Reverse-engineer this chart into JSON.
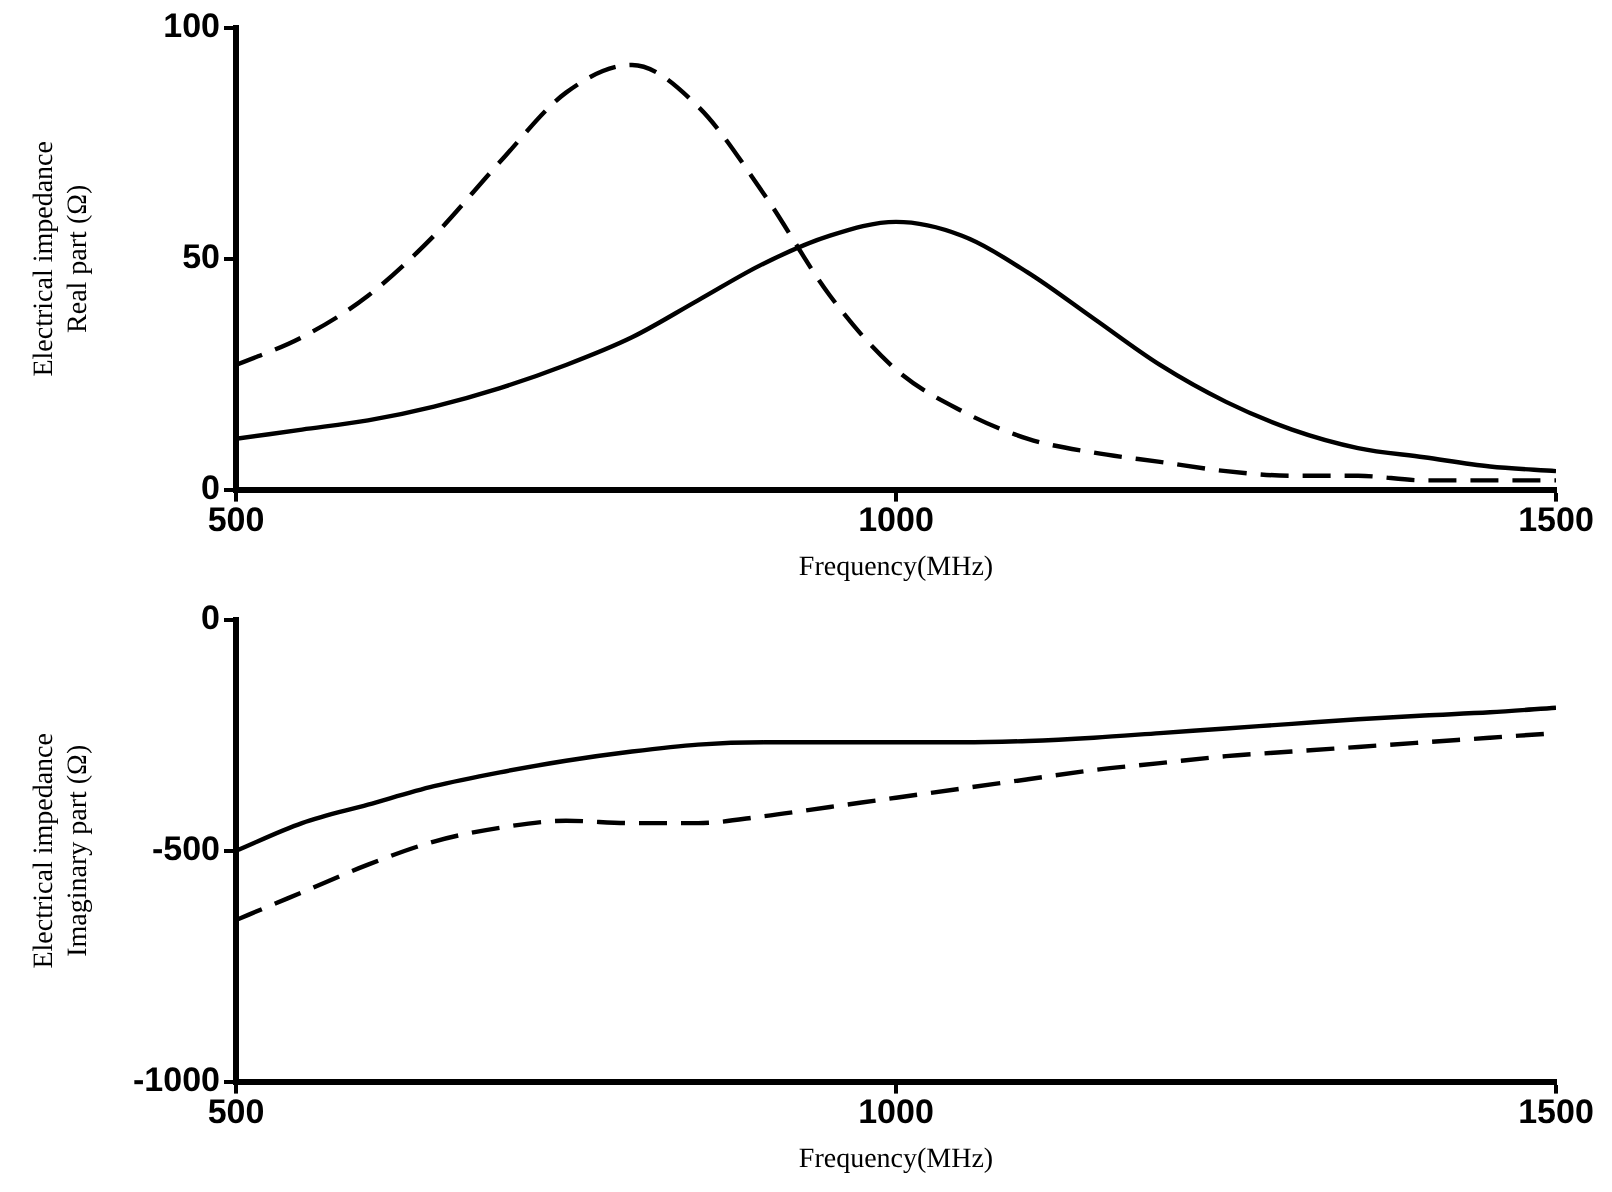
{
  "chart_data": [
    {
      "type": "line",
      "xlabel": "Frequency(MHz)",
      "ylabel": "Electrical impedance\nReal part (Ω)",
      "x": [
        500,
        550,
        600,
        650,
        700,
        750,
        800,
        850,
        900,
        950,
        1000,
        1050,
        1100,
        1150,
        1200,
        1250,
        1300,
        1350,
        1400,
        1450,
        1500
      ],
      "xlim": [
        500,
        1500
      ],
      "xticks": [
        500,
        1000,
        1500
      ],
      "ylim": [
        0,
        100
      ],
      "yticks": [
        0,
        50,
        100
      ],
      "grid": false,
      "legend": false,
      "marker": "none",
      "series": [
        {
          "color": "#000000",
          "line_style": "solid",
          "values": [
            11,
            13,
            15,
            18,
            22,
            27,
            33,
            41,
            49,
            55,
            58,
            55,
            47,
            37,
            27,
            19,
            13,
            9,
            7,
            5,
            4
          ]
        },
        {
          "color": "#000000",
          "line_style": "dashed",
          "values": [
            27,
            33,
            42,
            55,
            71,
            86,
            92,
            83,
            64,
            42,
            26,
            17,
            11,
            8,
            6,
            4,
            3,
            3,
            2,
            2,
            2
          ]
        }
      ]
    },
    {
      "type": "line",
      "xlabel": "Frequency(MHz)",
      "ylabel": "Electrical impedance\nImaginary part (Ω)",
      "x": [
        500,
        550,
        600,
        650,
        700,
        750,
        800,
        850,
        900,
        950,
        1000,
        1050,
        1100,
        1150,
        1200,
        1250,
        1300,
        1350,
        1400,
        1450,
        1500
      ],
      "xlim": [
        500,
        1500
      ],
      "xticks": [
        500,
        1000,
        1500
      ],
      "ylim": [
        -1000,
        0
      ],
      "yticks": [
        -1000,
        -500,
        0
      ],
      "grid": false,
      "legend": false,
      "marker": "none",
      "series": [
        {
          "color": "#000000",
          "line_style": "solid",
          "values": [
            -500,
            -440,
            -400,
            -360,
            -330,
            -305,
            -285,
            -270,
            -265,
            -265,
            -265,
            -265,
            -262,
            -255,
            -245,
            -235,
            -225,
            -215,
            -207,
            -200,
            -190
          ]
        },
        {
          "color": "#000000",
          "line_style": "dashed",
          "values": [
            -650,
            -590,
            -530,
            -480,
            -450,
            -435,
            -440,
            -440,
            -425,
            -405,
            -385,
            -365,
            -345,
            -325,
            -310,
            -295,
            -285,
            -275,
            -265,
            -255,
            -245
          ]
        }
      ]
    }
  ]
}
